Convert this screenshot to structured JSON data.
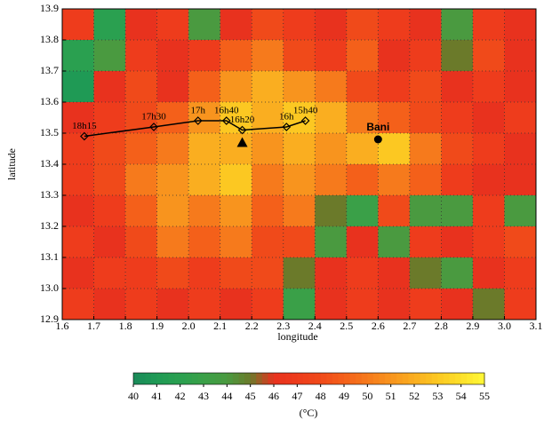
{
  "chart_data": {
    "type": "heatmap",
    "xlabel": "longitude",
    "ylabel": "latitude",
    "xlim": [
      1.6,
      3.1
    ],
    "ylim": [
      12.9,
      13.9
    ],
    "xticks": [
      1.6,
      1.7,
      1.8,
      1.9,
      {
        "value": 2,
        "label": "2.0"
      },
      2.1,
      2.2,
      2.3,
      2.4,
      2.5,
      2.6,
      2.7,
      2.8,
      2.9,
      {
        "value": 3,
        "label": "3.0"
      },
      3.1
    ],
    "yticks": [
      {
        "value": 12.9,
        "label": "12.9"
      },
      {
        "value": 13,
        "label": "13.0"
      },
      13.1,
      13.2,
      13.3,
      13.4,
      13.5,
      13.6,
      13.7,
      13.8,
      13.9
    ],
    "grid": true,
    "x": [
      1.65,
      1.75,
      1.85,
      1.95,
      2.05,
      2.15,
      2.25,
      2.35,
      2.45,
      2.55,
      2.65,
      2.75,
      2.85,
      2.95,
      3.05
    ],
    "y": [
      13.85,
      13.75,
      13.65,
      13.55,
      13.45,
      13.35,
      13.25,
      13.15,
      13.05,
      12.95
    ],
    "z": [
      [
        47,
        42,
        46,
        47,
        44,
        46,
        48,
        47,
        46,
        48,
        47,
        46,
        44,
        47,
        46
      ],
      [
        42,
        44,
        47,
        46,
        47,
        49,
        50,
        48,
        47,
        49,
        46,
        47,
        45,
        48,
        46
      ],
      [
        41,
        46,
        48,
        46,
        49,
        51,
        52,
        51,
        50,
        48,
        47,
        48,
        46,
        47,
        46
      ],
      [
        46,
        47,
        48,
        49,
        51,
        53,
        52,
        53,
        52,
        50,
        49,
        48,
        47,
        46,
        47
      ],
      [
        47,
        48,
        49,
        50,
        52,
        52,
        51,
        52,
        51,
        52,
        53,
        50,
        48,
        47,
        46
      ],
      [
        47,
        48,
        50,
        51,
        52,
        53,
        50,
        51,
        50,
        49,
        50,
        49,
        47,
        46,
        46
      ],
      [
        46,
        47,
        49,
        51,
        50,
        51,
        49,
        50,
        45,
        43,
        48,
        44,
        44,
        47,
        44
      ],
      [
        47,
        46,
        48,
        50,
        49,
        50,
        48,
        48,
        44,
        46,
        44,
        47,
        46,
        47,
        48
      ],
      [
        46,
        47,
        47,
        48,
        47,
        48,
        48,
        45,
        46,
        47,
        46,
        45,
        44,
        46,
        47
      ],
      [
        47,
        46,
        47,
        46,
        47,
        46,
        47,
        43,
        46,
        47,
        46,
        47,
        46,
        45,
        47
      ]
    ],
    "colorbar": {
      "label": "(°C)",
      "ticks": [
        40,
        41,
        42,
        43,
        44,
        45,
        46,
        47,
        48,
        49,
        50,
        51,
        52,
        53,
        54,
        55
      ],
      "colors": [
        "#1a8a5a",
        "#1f9a55",
        "#2aa050",
        "#3aa048",
        "#4a9a40",
        "#6b7a2a",
        "#e8321e",
        "#ee3c1c",
        "#f04a1a",
        "#f4601a",
        "#f67a1c",
        "#f8941e",
        "#faae20",
        "#fcc822",
        "#fde02a",
        "#fff836"
      ]
    },
    "track": {
      "labels": [
        "18h15",
        "17h30",
        "17h",
        "16h40",
        "16h20",
        "16h",
        "15h40"
      ],
      "x": [
        1.67,
        1.89,
        2.03,
        2.12,
        2.17,
        2.31,
        2.37
      ],
      "y": [
        13.49,
        13.52,
        13.54,
        13.54,
        13.51,
        13.52,
        13.54
      ]
    },
    "triangle": {
      "x": 2.17,
      "y": 13.47
    },
    "site": {
      "label": "Bani",
      "x": 2.6,
      "y": 13.48
    }
  }
}
